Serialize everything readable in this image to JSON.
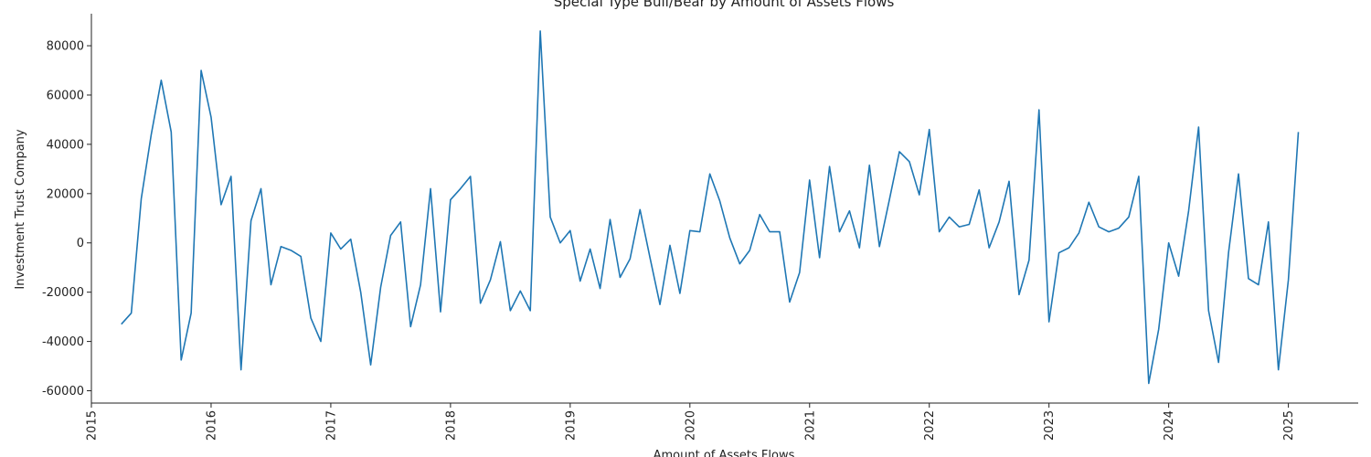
{
  "chart_data": {
    "type": "line",
    "title": "Special Type Bull/Bear by Amount of Assets Flows",
    "xlabel": "Amount of Assets Flows",
    "ylabel": "Investment Trust Company",
    "xlim": [
      "2015-01-01",
      "2025-08-01"
    ],
    "ylim": [
      -65000,
      93000
    ],
    "x_ticks": [
      "2015",
      "2016",
      "2017",
      "2018",
      "2019",
      "2020",
      "2021",
      "2022",
      "2023",
      "2024",
      "2025"
    ],
    "y_ticks": [
      -60000,
      -40000,
      -20000,
      0,
      20000,
      40000,
      60000,
      80000
    ],
    "grid": false,
    "line_color": "#1f77b4",
    "series": [
      {
        "x": [
          "2015-04",
          "2015-05",
          "2015-06",
          "2015-07",
          "2015-08",
          "2015-09",
          "2015-10",
          "2015-11",
          "2015-12",
          "2016-01",
          "2016-02",
          "2016-03",
          "2016-04",
          "2016-05",
          "2016-06",
          "2016-07",
          "2016-08",
          "2016-09",
          "2016-10",
          "2016-11",
          "2016-12",
          "2017-01",
          "2017-02",
          "2017-03",
          "2017-04",
          "2017-05",
          "2017-06",
          "2017-07",
          "2017-08",
          "2017-09",
          "2017-10",
          "2017-11",
          "2017-12",
          "2018-01",
          "2018-02",
          "2018-03",
          "2018-04",
          "2018-05",
          "2018-06",
          "2018-07",
          "2018-08",
          "2018-09",
          "2018-10",
          "2018-11",
          "2018-12",
          "2019-01",
          "2019-02",
          "2019-03",
          "2019-04",
          "2019-05",
          "2019-06",
          "2019-07",
          "2019-08",
          "2019-09",
          "2019-10",
          "2019-11",
          "2019-12",
          "2020-01",
          "2020-02",
          "2020-03",
          "2020-04",
          "2020-05",
          "2020-06",
          "2020-07",
          "2020-08",
          "2020-09",
          "2020-10",
          "2020-11",
          "2020-12",
          "2021-01",
          "2021-02",
          "2021-03",
          "2021-04",
          "2021-05",
          "2021-06",
          "2021-07",
          "2021-08",
          "2021-09",
          "2021-10",
          "2021-11",
          "2021-12",
          "2022-01",
          "2022-02",
          "2022-03",
          "2022-04",
          "2022-05",
          "2022-06",
          "2022-07",
          "2022-08",
          "2022-09",
          "2022-10",
          "2022-11",
          "2022-12",
          "2023-01",
          "2023-02",
          "2023-03",
          "2023-04",
          "2023-05",
          "2023-06",
          "2023-07",
          "2023-08",
          "2023-09",
          "2023-10",
          "2023-11",
          "2023-12",
          "2024-01",
          "2024-02",
          "2024-03",
          "2024-04",
          "2024-05",
          "2024-06",
          "2024-07",
          "2024-08",
          "2024-09",
          "2024-10",
          "2024-11",
          "2024-12",
          "2025-01",
          "2025-02"
        ],
        "values": [
          -33000,
          -28500,
          18000,
          44000,
          66000,
          45000,
          -47500,
          -28500,
          70000,
          51000,
          15500,
          27000,
          -51500,
          9000,
          22000,
          -17000,
          -1500,
          -3000,
          -5500,
          -30500,
          -40000,
          4000,
          -2500,
          1500,
          -20000,
          -49500,
          -18000,
          3000,
          8500,
          -34000,
          -17000,
          22000,
          -28000,
          17500,
          22000,
          27000,
          -24500,
          -15000,
          500,
          -27500,
          -19500,
          -27500,
          86000,
          10500,
          0,
          5000,
          -15500,
          -2500,
          -18500,
          9500,
          -14000,
          -6500,
          13500,
          -6000,
          -25000,
          -1000,
          -20500,
          5000,
          4500,
          28000,
          17000,
          2000,
          -8500,
          -3000,
          11500,
          4500,
          4500,
          -24000,
          -12000,
          25500,
          -6000,
          31000,
          4500,
          13000,
          -2000,
          31500,
          -1500,
          17500,
          37000,
          33000,
          19500,
          46000,
          4500,
          10500,
          6500,
          7500,
          21500,
          -2000,
          8500,
          25000,
          -21000,
          -7000,
          54000,
          -32000,
          -4000,
          -2000,
          4000,
          16500,
          6500,
          4500,
          6000,
          10500,
          27000,
          -57000,
          -35000,
          0,
          -13500,
          13000,
          47000,
          -27500,
          -48500,
          -4000,
          28000,
          -14500,
          -17000,
          8500,
          -51500,
          -15000,
          45000
        ]
      }
    ]
  }
}
